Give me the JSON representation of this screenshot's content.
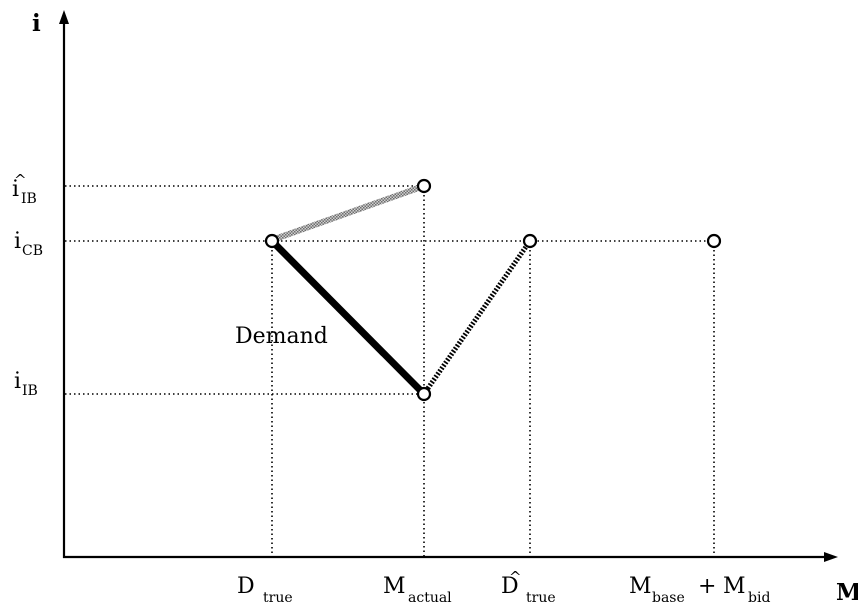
{
  "axes": {
    "y_title": "i",
    "x_title": "M"
  },
  "y_labels": {
    "i_ib_hat": {
      "main": "i",
      "sub": "IB",
      "hat": "^"
    },
    "i_cb": {
      "main": "i",
      "sub": "CB"
    },
    "i_ib": {
      "main": "i",
      "sub": "IB"
    }
  },
  "x_labels": {
    "d_true": {
      "main": "D",
      "sub": "true"
    },
    "m_actual": {
      "main": "M",
      "sub": "actual"
    },
    "d_true_hat": {
      "main": "D",
      "sub": "true",
      "hat": "^"
    },
    "m_base_bid": {
      "main1": "M",
      "sub1": "base",
      "op": "+",
      "main2": "M",
      "sub2": "bid"
    }
  },
  "curve_label": "Demand",
  "colors": {
    "demand_line": "#000000",
    "upper_segment": "#a8a8a8",
    "right_segment": "#000000",
    "background": "#ffffff"
  }
}
